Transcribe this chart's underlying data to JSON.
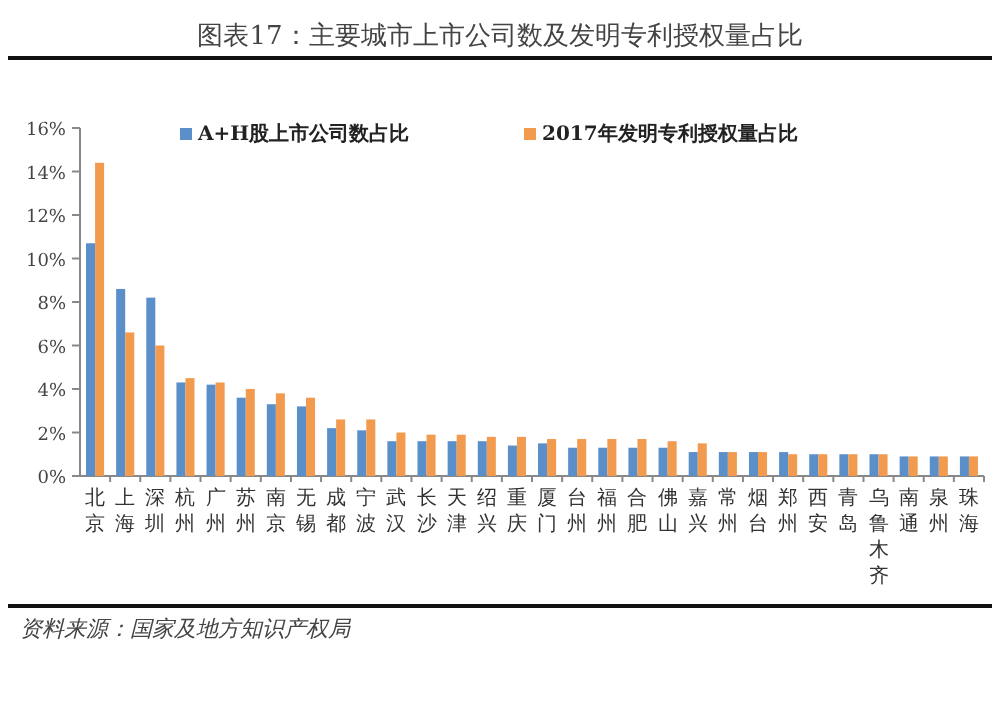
{
  "chart_data": {
    "type": "bar",
    "title": "图表17：主要城市上市公司数及发明专利授权量占比",
    "categories": [
      "北京",
      "上海",
      "深圳",
      "杭州",
      "广州",
      "苏州",
      "南京",
      "无锡",
      "成都",
      "宁波",
      "武汉",
      "长沙",
      "天津",
      "绍兴",
      "重庆",
      "厦门",
      "台州",
      "福州",
      "合肥",
      "佛山",
      "嘉兴",
      "常州",
      "烟台",
      "郑州",
      "西安",
      "青岛",
      "乌鲁木齐",
      "南通",
      "泉州",
      "珠海"
    ],
    "series": [
      {
        "name": "A+H股上市公司数占比",
        "color": "#5b8fc9",
        "values": [
          10.7,
          8.6,
          8.2,
          4.3,
          4.2,
          3.6,
          3.3,
          3.2,
          2.2,
          2.1,
          1.6,
          1.6,
          1.6,
          1.6,
          1.4,
          1.5,
          1.3,
          1.3,
          1.3,
          1.3,
          1.1,
          1.1,
          1.1,
          1.1,
          1.0,
          1.0,
          1.0,
          0.9,
          0.9,
          0.9
        ]
      },
      {
        "name": "2017年发明专利授权量占比",
        "color": "#f29b4f",
        "values": [
          14.4,
          6.6,
          6.0,
          4.5,
          4.3,
          4.0,
          3.8,
          3.6,
          2.6,
          2.6,
          2.0,
          1.9,
          1.9,
          1.8,
          1.8,
          1.7,
          1.7,
          1.7,
          1.7,
          1.6,
          1.5,
          1.1,
          1.1,
          1.0,
          1.0,
          1.0,
          1.0,
          0.9,
          0.9,
          0.9
        ]
      }
    ],
    "ylim": [
      0,
      16
    ],
    "yticks": [
      {
        "value": 0,
        "label": "0%"
      },
      {
        "value": 2,
        "label": "2%"
      },
      {
        "value": 4,
        "label": "4%"
      },
      {
        "value": 6,
        "label": "6%"
      },
      {
        "value": 8,
        "label": "8%"
      },
      {
        "value": 10,
        "label": "10%"
      },
      {
        "value": 12,
        "label": "12%"
      },
      {
        "value": 14,
        "label": "14%"
      },
      {
        "value": 16,
        "label": "16%"
      }
    ],
    "legend": "top",
    "annotations": [
      "资料来源：国家及地方知识产权局"
    ]
  }
}
